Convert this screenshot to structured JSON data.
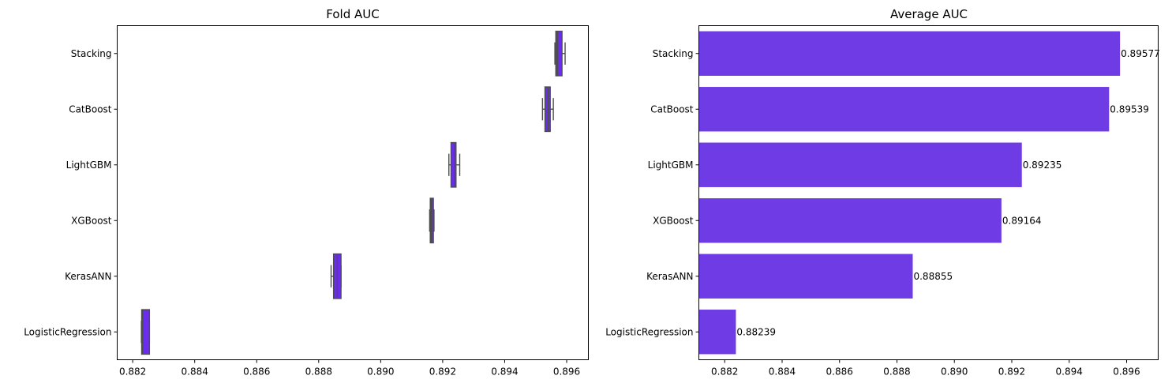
{
  "chart_data": [
    {
      "type": "box",
      "title": "Fold AUC",
      "xlabel": "",
      "ylabel": "",
      "orientation": "horizontal",
      "xlim": [
        0.8815,
        0.8967
      ],
      "xticks": [
        0.882,
        0.884,
        0.886,
        0.888,
        0.89,
        0.892,
        0.894,
        0.896
      ],
      "tick_labels": [
        "0.882",
        "0.884",
        "0.886",
        "0.888",
        "0.890",
        "0.892",
        "0.894",
        "0.896"
      ],
      "categories": [
        "Stacking",
        "CatBoost",
        "LightGBM",
        "XGBoost",
        "KerasANN",
        "LogisticRegression"
      ],
      "boxes": [
        {
          "whislo": 0.89562,
          "q1": 0.89565,
          "median": 0.8957,
          "q3": 0.89585,
          "whishi": 0.89595
        },
        {
          "whislo": 0.89522,
          "q1": 0.8953,
          "median": 0.8954,
          "q3": 0.89547,
          "whishi": 0.89557
        },
        {
          "whislo": 0.8922,
          "q1": 0.89227,
          "median": 0.89238,
          "q3": 0.89243,
          "whishi": 0.89255
        },
        {
          "whislo": 0.89158,
          "q1": 0.8916,
          "median": 0.89163,
          "q3": 0.8917,
          "whishi": 0.89172
        },
        {
          "whislo": 0.8884,
          "q1": 0.88848,
          "median": 0.8886,
          "q3": 0.88872,
          "whishi": 0.88872
        },
        {
          "whislo": 0.88228,
          "q1": 0.88229,
          "median": 0.88232,
          "q3": 0.88254,
          "whishi": 0.88254
        }
      ],
      "color": "#6a2df0",
      "edge_color": "#4d4d4d",
      "grid": false
    },
    {
      "type": "bar",
      "title": "Average AUC",
      "xlabel": "",
      "ylabel": "",
      "orientation": "horizontal",
      "xlim": [
        0.8811,
        0.8971
      ],
      "xticks": [
        0.882,
        0.884,
        0.886,
        0.888,
        0.89,
        0.892,
        0.894,
        0.896
      ],
      "tick_labels": [
        "0.882",
        "0.884",
        "0.886",
        "0.888",
        "0.890",
        "0.892",
        "0.894",
        "0.896"
      ],
      "categories": [
        "Stacking",
        "CatBoost",
        "LightGBM",
        "XGBoost",
        "KerasANN",
        "LogisticRegression"
      ],
      "values": [
        0.89577,
        0.89539,
        0.89235,
        0.89164,
        0.88855,
        0.88239
      ],
      "value_labels": [
        "0.89577",
        "0.89539",
        "0.89235",
        "0.89164",
        "0.88855",
        "0.88239"
      ],
      "color": "#6e3be4",
      "grid": false
    }
  ]
}
